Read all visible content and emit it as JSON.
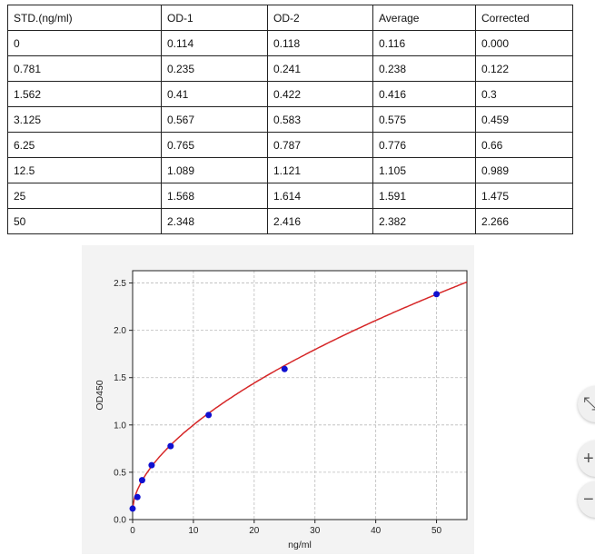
{
  "table": {
    "headers": [
      "STD.(ng/ml)",
      "OD-1",
      "OD-2",
      "Average",
      "Corrected"
    ],
    "rows": [
      [
        "0",
        "0.114",
        "0.118",
        "0.116",
        "0.000"
      ],
      [
        "0.781",
        "0.235",
        "0.241",
        "0.238",
        "0.122"
      ],
      [
        "1.562",
        "0.41",
        "0.422",
        "0.416",
        "0.3"
      ],
      [
        "3.125",
        "0.567",
        "0.583",
        "0.575",
        "0.459"
      ],
      [
        "6.25",
        "0.765",
        "0.787",
        "0.776",
        "0.66"
      ],
      [
        "12.5",
        "1.089",
        "1.121",
        "1.105",
        "0.989"
      ],
      [
        "25",
        "1.568",
        "1.614",
        "1.591",
        "1.475"
      ],
      [
        "50",
        "2.348",
        "2.416",
        "2.382",
        "2.266"
      ]
    ]
  },
  "chart_data": {
    "type": "scatter",
    "xlabel": "ng/ml",
    "ylabel": "OD450",
    "xlim": [
      0,
      55
    ],
    "ylim": [
      0,
      2.63
    ],
    "xticks": [
      0,
      10,
      20,
      30,
      40,
      50
    ],
    "yticks": [
      0.0,
      0.5,
      1.0,
      1.5,
      2.0,
      2.5
    ],
    "x": [
      0,
      0.781,
      1.562,
      3.125,
      6.25,
      12.5,
      25,
      50
    ],
    "y": [
      0.116,
      0.238,
      0.416,
      0.575,
      0.776,
      1.105,
      1.591,
      2.382
    ],
    "grid": true,
    "point_color": "#1010d0",
    "curve_color": "#d62728",
    "fit_curve": true
  },
  "side_buttons": [
    {
      "icon": "collapse-icon",
      "label": "⤡"
    },
    {
      "icon": "zoom-in-icon",
      "label": "+"
    },
    {
      "icon": "zoom-out-icon",
      "label": "−"
    }
  ]
}
